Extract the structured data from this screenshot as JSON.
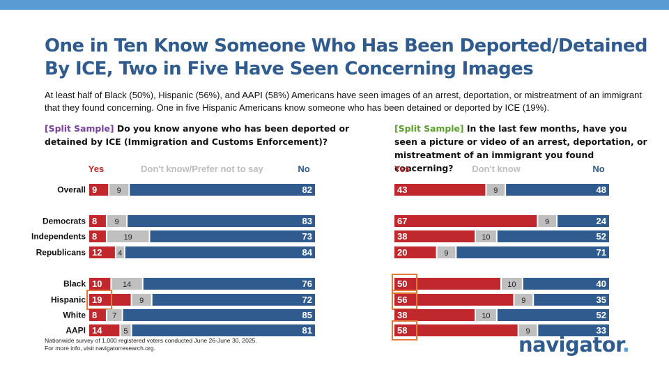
{
  "title": "One in Ten Know Someone Who Has Been Deported/Detained By ICE, Two in Five Have Seen Concerning Images",
  "subtitle": "At least half of Black (50%), Hispanic (56%), and AAPI (58%) Americans have seen images of an arrest, deportation, or mistreatment of an immigrant that they found concerning. One in five Hispanic Americans know someone who has been detained or deported by ICE (19%).",
  "left_question": {
    "tag": "[Split Sample]",
    "text": "Do you know anyone who has been deported or detained by ICE (Immigration and Customs Enforcement)?"
  },
  "right_question": {
    "tag": "[Split Sample]",
    "text": "In the last few months, have you seen a picture or video of an arrest, deportation, or mistreatment of an immigrant you found concerning?"
  },
  "colors": {
    "yes": "#c0282d",
    "dk": "#bfbfbf",
    "no": "#2f5b8f",
    "highlight": "#e07b39"
  },
  "chart_data": [
    {
      "type": "bar",
      "stacked": true,
      "orientation": "horizontal",
      "legend": [
        "Yes",
        "Don't know/Prefer not to say",
        "No"
      ],
      "categories": [
        "Overall",
        "Democrats",
        "Independents",
        "Republicans",
        "Black",
        "Hispanic",
        "White",
        "AAPI"
      ],
      "series": [
        {
          "name": "Yes",
          "values": [
            9,
            8,
            8,
            12,
            10,
            19,
            8,
            14
          ]
        },
        {
          "name": "Don't know/Prefer not to say",
          "values": [
            9,
            9,
            19,
            4,
            14,
            9,
            7,
            5
          ]
        },
        {
          "name": "No",
          "values": [
            82,
            83,
            73,
            84,
            76,
            72,
            85,
            81
          ]
        }
      ],
      "highlighted": [
        "Hispanic"
      ]
    },
    {
      "type": "bar",
      "stacked": true,
      "orientation": "horizontal",
      "legend": [
        "Yes",
        "Don't know",
        "No"
      ],
      "categories": [
        "Overall",
        "Democrats",
        "Independents",
        "Republicans",
        "Black",
        "Hispanic",
        "White",
        "AAPI"
      ],
      "series": [
        {
          "name": "Yes",
          "values": [
            43,
            67,
            38,
            20,
            50,
            56,
            38,
            58
          ]
        },
        {
          "name": "Don't know",
          "values": [
            9,
            9,
            10,
            9,
            10,
            9,
            10,
            9
          ]
        },
        {
          "name": "No",
          "values": [
            48,
            24,
            52,
            71,
            40,
            35,
            52,
            33
          ]
        }
      ],
      "highlighted": [
        "Black",
        "Hispanic",
        "AAPI"
      ]
    }
  ],
  "footnote": [
    "Nationwide survey of 1,000 registered voters conducted June 26-June 30, 2025.",
    "For more info, visit navigatorresearch.org."
  ],
  "logo": {
    "word": "navigator",
    "dot": "."
  }
}
